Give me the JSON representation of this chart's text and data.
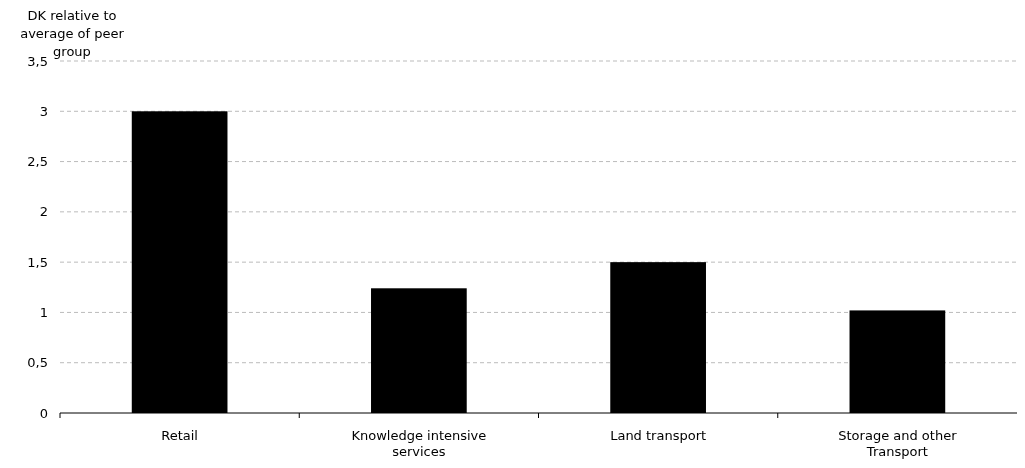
{
  "chart_data": {
    "type": "bar",
    "ylabel": "DK relative to average of peer group",
    "categories": [
      "Retail",
      "Knowledge intensive services",
      "Land transport",
      "Storage and other Transport"
    ],
    "values": [
      3.0,
      1.24,
      1.5,
      1.02
    ],
    "color": "#000000",
    "ylim": [
      0,
      3.5
    ],
    "yticks": [
      0,
      {
        "value": 0.5,
        "label": "0,5"
      },
      1,
      {
        "value": 1.5,
        "label": "1,5"
      },
      2,
      {
        "value": 2.5,
        "label": "2,5"
      },
      3,
      {
        "value": 3.5,
        "label": "3,5"
      }
    ],
    "grid": "y"
  }
}
